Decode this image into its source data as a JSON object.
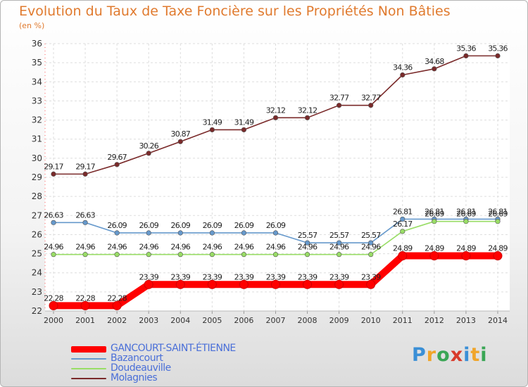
{
  "chart_data": {
    "type": "line",
    "title": "Evolution du Taux de Taxe Foncière sur les Propriétés Non Bâties",
    "ylabel": "(en %)",
    "xlabel": "",
    "categories": [
      "2000",
      "2001",
      "2002",
      "2003",
      "2004",
      "2005",
      "2006",
      "2007",
      "2008",
      "2009",
      "2010",
      "2011",
      "2012",
      "2013",
      "2014"
    ],
    "ylim": [
      22,
      36
    ],
    "yticks": [
      "22",
      "23",
      "24",
      "25",
      "26",
      "27",
      "28",
      "29",
      "30",
      "31",
      "32",
      "33",
      "34",
      "35",
      "36"
    ],
    "grid": true,
    "legend_position": "bottom-left",
    "series": [
      {
        "name": "GANCOURT-SAINT-ÉTIENNE",
        "color": "#ff0000",
        "values": [
          22.28,
          22.28,
          22.28,
          23.39,
          23.39,
          23.39,
          23.39,
          23.39,
          23.39,
          23.39,
          23.39,
          24.89,
          24.89,
          24.89,
          24.89
        ],
        "labels": [
          "22.28",
          "22.28",
          "22.28",
          "23.39",
          "23.39",
          "23.39",
          "23.39",
          "23.39",
          "23.39",
          "23.39",
          "23.39",
          "24.89",
          "24.89",
          "24.89",
          "24.89"
        ]
      },
      {
        "name": "Bazancourt",
        "color": "#6699cc",
        "values": [
          26.63,
          26.63,
          26.09,
          26.09,
          26.09,
          26.09,
          26.09,
          26.09,
          25.57,
          25.57,
          25.57,
          26.81,
          26.81,
          26.81,
          26.81
        ],
        "labels": [
          "26.63",
          "26.63",
          "26.09",
          "26.09",
          "26.09",
          "26.09",
          "26.09",
          "26.09",
          "25.57",
          "25.57",
          "25.57",
          "26.81",
          "26.81",
          "26.81",
          "26.81"
        ]
      },
      {
        "name": "Doudeauville",
        "color": "#99dd66",
        "values": [
          24.96,
          24.96,
          24.96,
          24.96,
          24.96,
          24.96,
          24.96,
          24.96,
          24.96,
          24.96,
          24.96,
          26.17,
          26.69,
          26.69,
          26.69
        ],
        "labels": [
          "24.96",
          "24.96",
          "24.96",
          "24.96",
          "24.96",
          "24.96",
          "24.96",
          "24.96",
          "24.96",
          "24.96",
          "24.96",
          "26.17",
          "26.69",
          "26.69",
          "26.69"
        ]
      },
      {
        "name": "Molagnies",
        "color": "#7a2a2a",
        "values": [
          29.17,
          29.17,
          29.67,
          30.26,
          30.87,
          31.49,
          31.49,
          32.12,
          32.12,
          32.77,
          32.77,
          34.36,
          34.68,
          35.36,
          35.36
        ],
        "labels": [
          "29.17",
          "29.17",
          "29.67",
          "30.26",
          "30.87",
          "31.49",
          "31.49",
          "32.12",
          "32.12",
          "32.77",
          "32.77",
          "34.36",
          "34.68",
          "35.36",
          "35.36"
        ]
      }
    ]
  },
  "branding": {
    "letters": [
      "P",
      "r",
      "o",
      "x",
      "i",
      "t",
      "i"
    ],
    "colors": [
      "#3a8fd6",
      "#f0a52a",
      "#3aa655",
      "#d83a2a",
      "#3a8fd6",
      "#f0a52a",
      "#3aa655"
    ]
  }
}
